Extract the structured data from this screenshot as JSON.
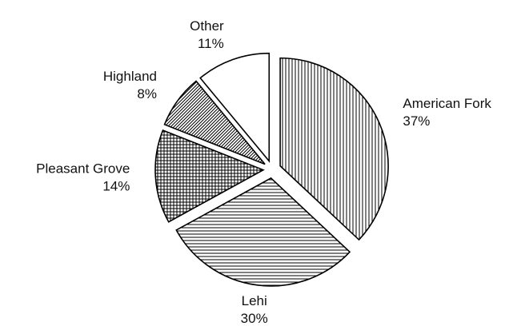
{
  "chart_data": {
    "type": "pie",
    "categories": [
      "American Fork",
      "Lehi",
      "Pleasant Grove",
      "Highland",
      "Other"
    ],
    "values": [
      37,
      30,
      14,
      8,
      11
    ],
    "value_labels": [
      "37%",
      "30%",
      "14%",
      "8%",
      "11%"
    ],
    "patterns": [
      "vertical",
      "horizontal",
      "crosshatch",
      "diagonal",
      "none"
    ],
    "color": "#000000",
    "exploded": true
  }
}
